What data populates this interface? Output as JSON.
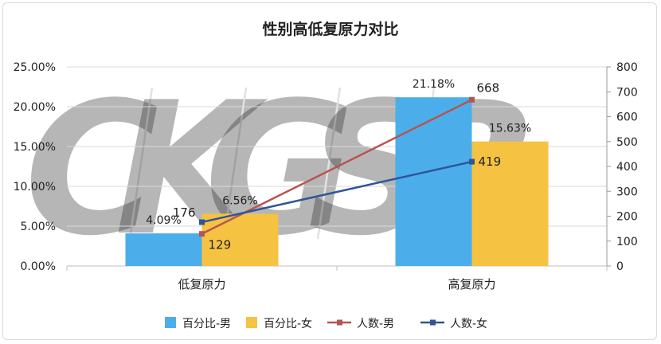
{
  "chart_data": {
    "type": "bar",
    "title": "性别高低复原力对比",
    "categories": [
      "低复原力",
      "高复原力"
    ],
    "watermark": "CKGSB",
    "y_left": {
      "ylim": [
        0,
        25
      ],
      "ticks": [
        "0.00%",
        "5.00%",
        "10.00%",
        "15.00%",
        "20.00%",
        "25.00%"
      ]
    },
    "y_right": {
      "ylim": [
        0,
        800
      ],
      "ticks": [
        "0",
        "100",
        "200",
        "300",
        "400",
        "500",
        "600",
        "700",
        "800"
      ]
    },
    "grid": true,
    "legend_position": "bottom",
    "series": [
      {
        "name": "百分比-男",
        "type": "bar",
        "axis": "left",
        "color": "#4baeea",
        "values": [
          4.09,
          21.18
        ],
        "labels": [
          "4.09%",
          "21.18%"
        ]
      },
      {
        "name": "百分比-女",
        "type": "bar",
        "axis": "left",
        "color": "#f5c242",
        "values": [
          6.56,
          15.63
        ],
        "labels": [
          "6.56%",
          "15.63%"
        ]
      },
      {
        "name": "人数-男",
        "type": "line",
        "axis": "right",
        "color": "#b85450",
        "values": [
          129,
          668
        ],
        "labels": [
          "129",
          "668"
        ]
      },
      {
        "name": "人数-女",
        "type": "line",
        "axis": "right",
        "color": "#2f5597",
        "values": [
          176,
          419
        ],
        "labels": [
          "176",
          "419"
        ]
      }
    ]
  }
}
